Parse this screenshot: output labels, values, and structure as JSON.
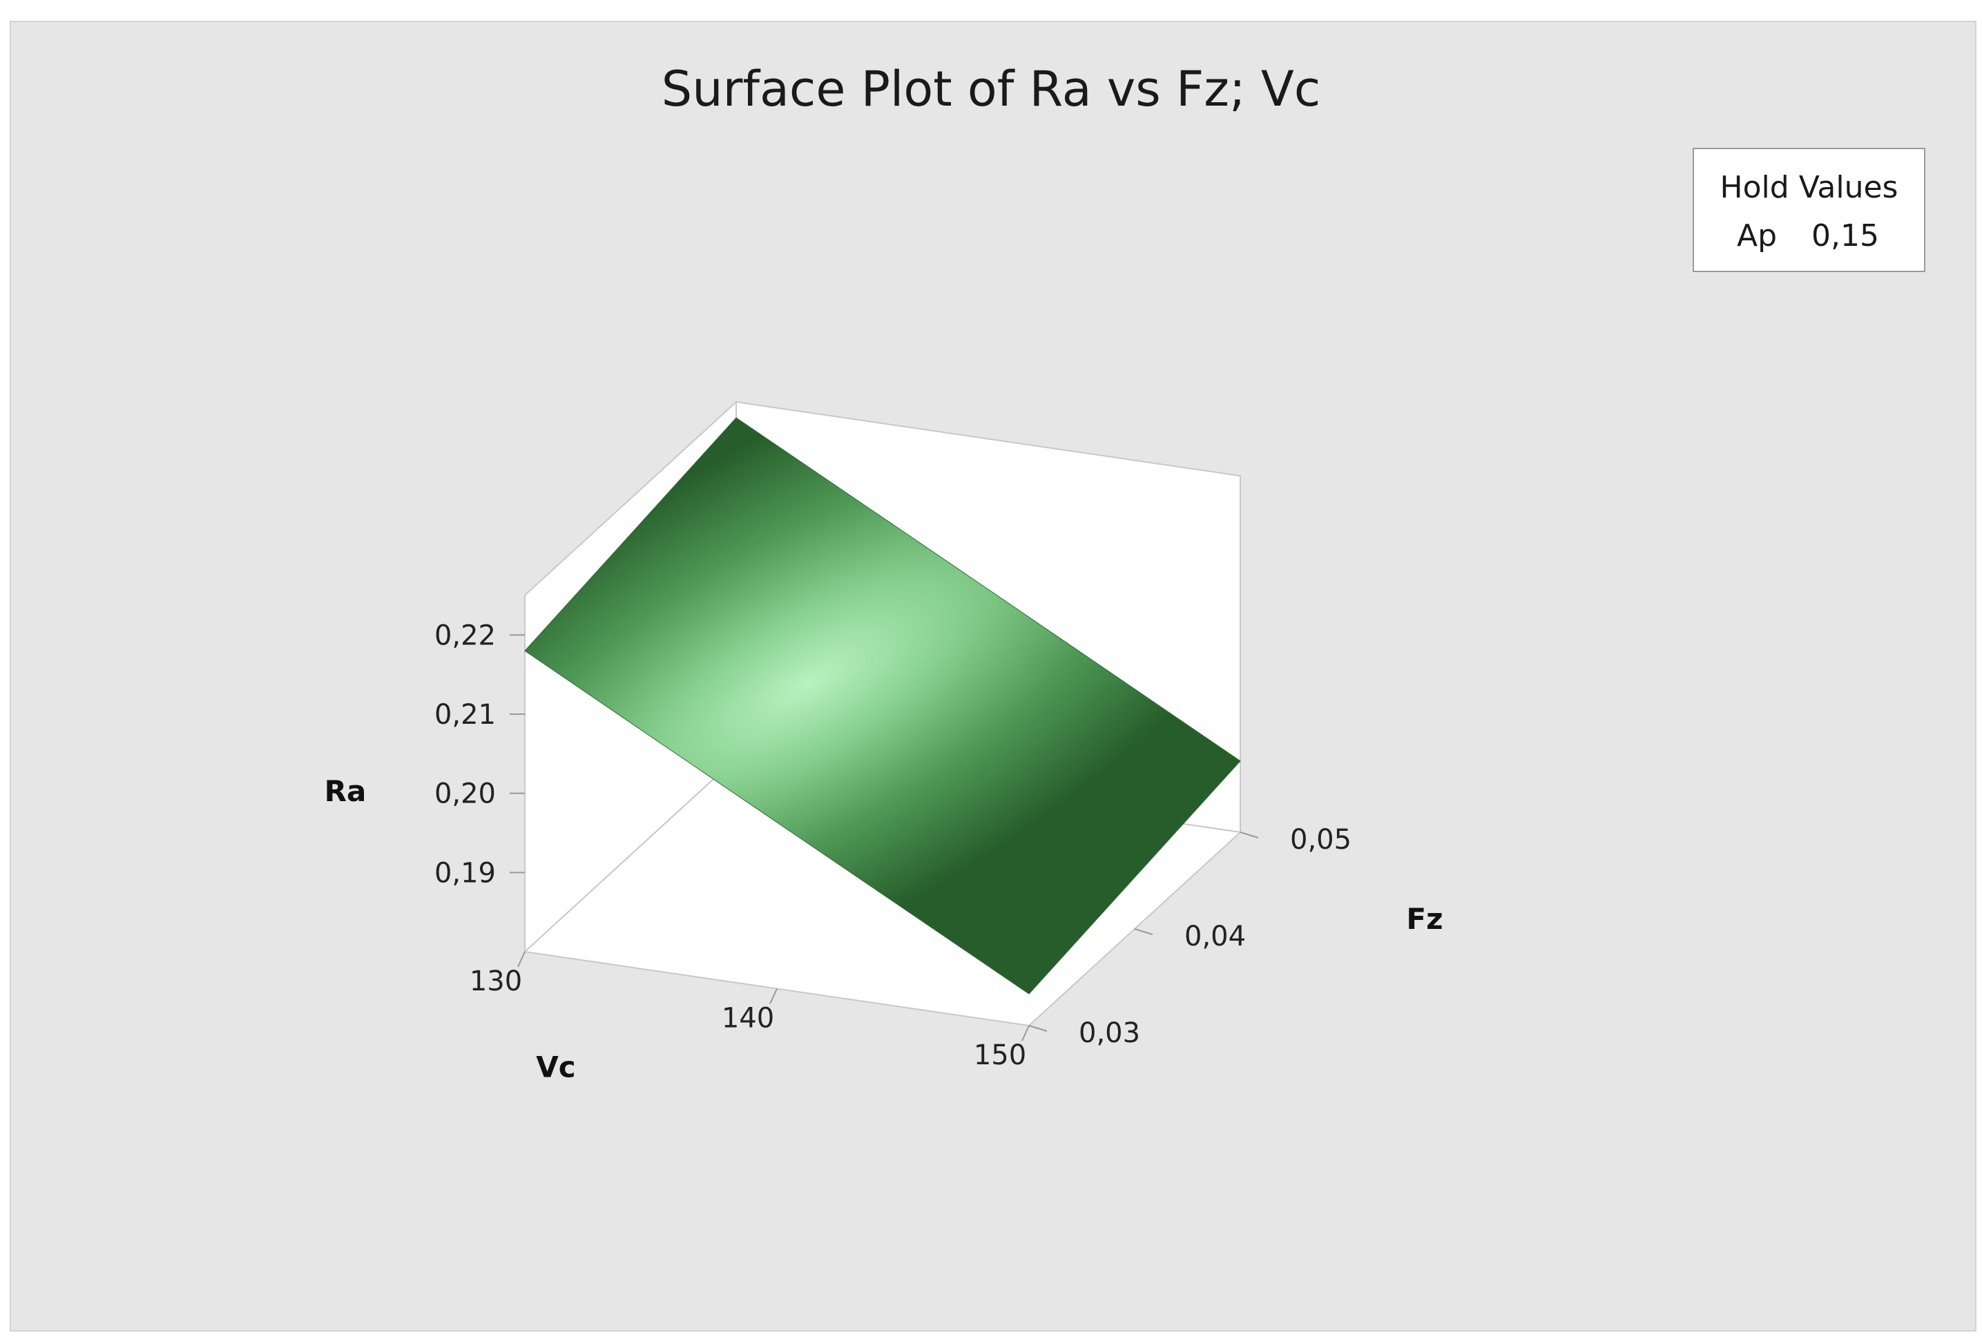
{
  "chart_data": {
    "type": "surface",
    "title": "Surface Plot of Ra vs Fz; Vc",
    "xlabel": "Vc",
    "ylabel": "Fz",
    "zlabel": "Ra",
    "x_ticks": [
      "130",
      "140",
      "150"
    ],
    "y_ticks": [
      "0,03",
      "0,04",
      "0,05"
    ],
    "z_ticks": [
      "0,19",
      "0,20",
      "0,21",
      "0,22"
    ],
    "x_range": [
      130,
      150
    ],
    "y_range": [
      0.03,
      0.05
    ],
    "z_range": [
      0.18,
      0.225
    ],
    "surface": {
      "x": [
        130,
        150
      ],
      "y": [
        0.03,
        0.05
      ],
      "z": [
        [
          0.218,
          0.223
        ],
        [
          0.184,
          0.189
        ]
      ]
    },
    "surface_color": "#3f8a45",
    "surface_highlight": "#b8f2bf",
    "hold_values": {
      "title": "Hold Values",
      "variable": "Ap",
      "value": "0,15"
    }
  }
}
